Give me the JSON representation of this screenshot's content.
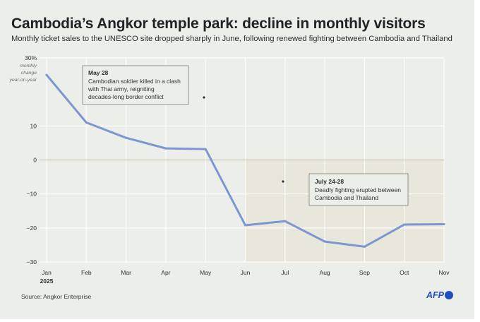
{
  "title": "Cambodia’s Angkor temple park: decline in monthly visitors",
  "subtitle": "Monthly ticket sales to the UNESCO site dropped sharply in June, following renewed fighting between Cambodia and Thailand",
  "source": "Source: Angkor Enterprise",
  "logo": "AFP",
  "colors": {
    "line": "#7b97d1",
    "background": "#eceee9",
    "shade": "#e8e1d0",
    "zero_line": "#cfc8b8",
    "brand": "#1d4fc4"
  },
  "chart_data": {
    "type": "line",
    "categories": [
      "Jan",
      "Feb",
      "Mar",
      "Apr",
      "May",
      "Jun",
      "Jul",
      "Aug",
      "Sep",
      "Oct",
      "Nov"
    ],
    "year_label": "2025",
    "values": [
      25,
      11,
      6.5,
      3.4,
      3.2,
      -19.2,
      -18,
      -24,
      -25.5,
      -19,
      -18.9
    ],
    "ylim": [
      -30,
      30
    ],
    "yticks": [
      30,
      10,
      0,
      -10,
      -20,
      -30
    ],
    "ytick_labels": [
      "30%",
      "10",
      "0",
      "−10",
      "−20",
      "−30"
    ],
    "ylabel": [
      "monthly",
      "change",
      "year-on-year"
    ],
    "annotations": [
      {
        "title": "May 28",
        "lines": [
          "Cambodian soldier killed in a clash",
          "with Thai army, reigniting",
          "decades-long border conflict"
        ],
        "month": 4
      },
      {
        "title": "July 24-28",
        "lines": [
          "Deadly fighting erupted between",
          "Cambodia and Thailand"
        ],
        "month": 6
      }
    ]
  }
}
